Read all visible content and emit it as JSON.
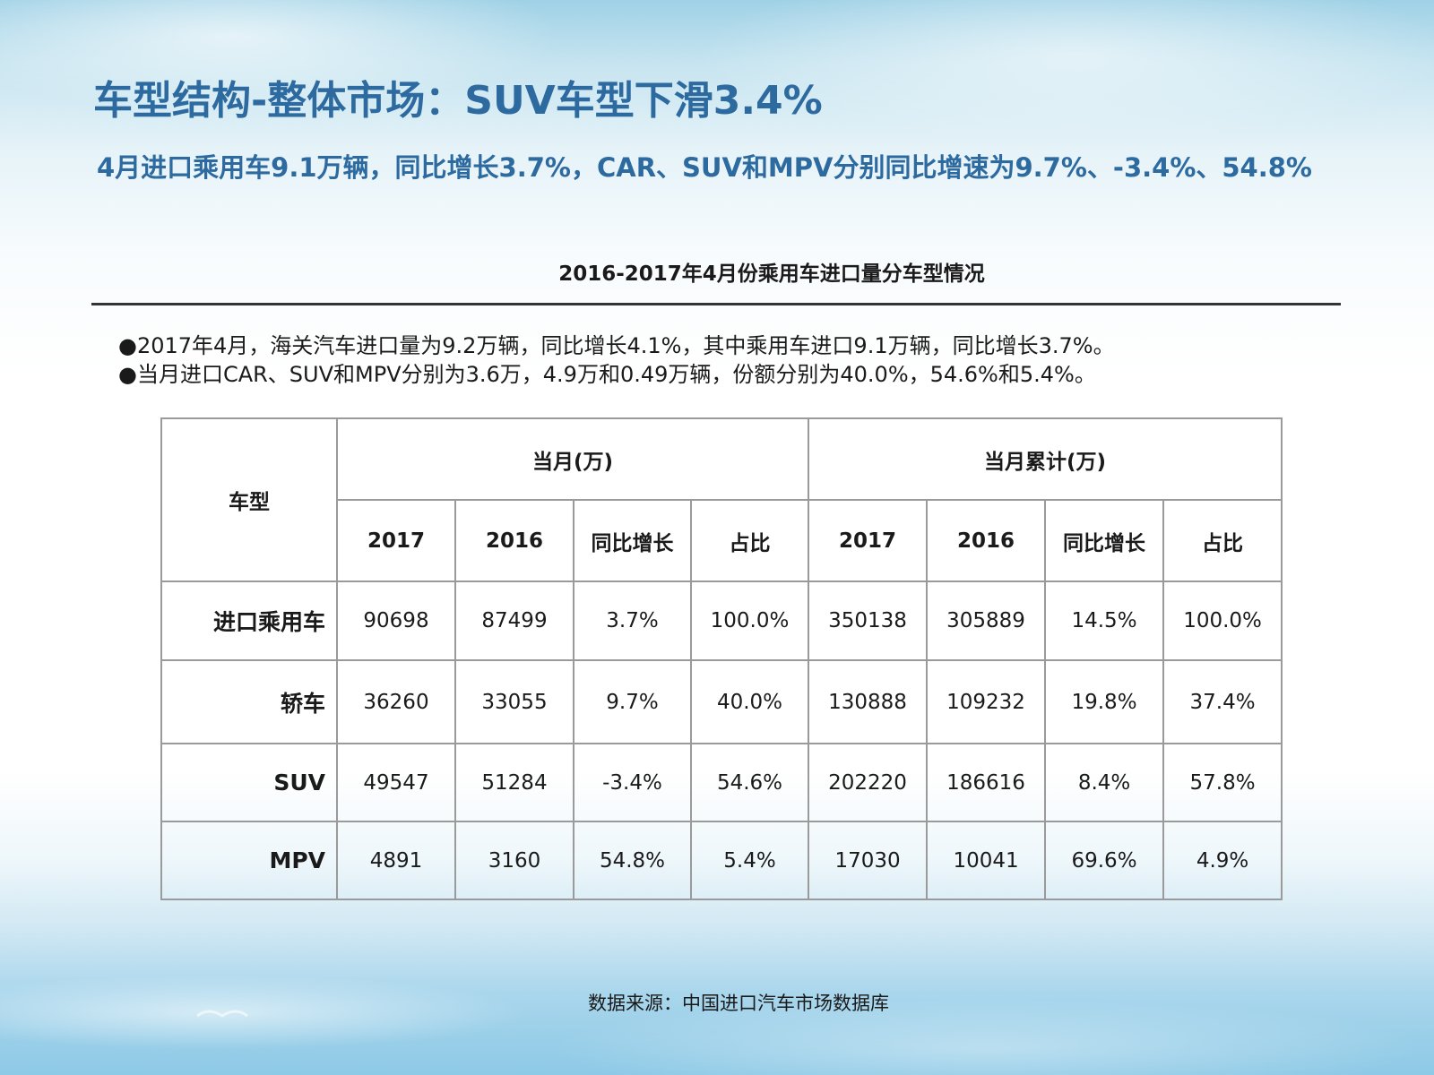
{
  "title": "车型结构-整体市场：SUV车型下滑3.4%",
  "subtitle": "4月进口乘用车9.1万辆，同比增长3.7%，CAR、SUV和MPV分别同比增速为9.7%、-3.4%、54.8%",
  "table_title": "2016-2017年4月份乘用车进口量分车型情况",
  "bullets": [
    "●2017年4月，海关汽车进口量为9.2万辆，同比增长4.1%，其中乘用车进口9.1万辆，同比增长3.7%。",
    "●当月进口CAR、SUV和MPV分别为3.6万，4.9万和0.49万辆，份额分别为40.0%，54.6%和5.4%。"
  ],
  "table": {
    "corner_label": "车型",
    "group_headers": [
      "当月(万)",
      "当月累计(万)"
    ],
    "sub_headers": [
      "2017",
      "2016",
      "同比增长",
      "占比",
      "2017",
      "2016",
      "同比增长",
      "占比"
    ],
    "rows": [
      {
        "label": "进口乘用车",
        "cells": [
          "90698",
          "87499",
          "3.7%",
          "100.0%",
          "350138",
          "305889",
          "14.5%",
          "100.0%"
        ]
      },
      {
        "label": "轿车",
        "cells": [
          "36260",
          "33055",
          "9.7%",
          "40.0%",
          "130888",
          "109232",
          "19.8%",
          "37.4%"
        ]
      },
      {
        "label": "SUV",
        "cells": [
          "49547",
          "51284",
          "-3.4%",
          "54.6%",
          "202220",
          "186616",
          "8.4%",
          "57.8%"
        ]
      },
      {
        "label": "MPV",
        "cells": [
          "4891",
          "3160",
          "54.8%",
          "5.4%",
          "17030",
          "10041",
          "69.6%",
          "4.9%"
        ]
      }
    ]
  },
  "source": "数据来源：中国进口汽车市场数据库"
}
